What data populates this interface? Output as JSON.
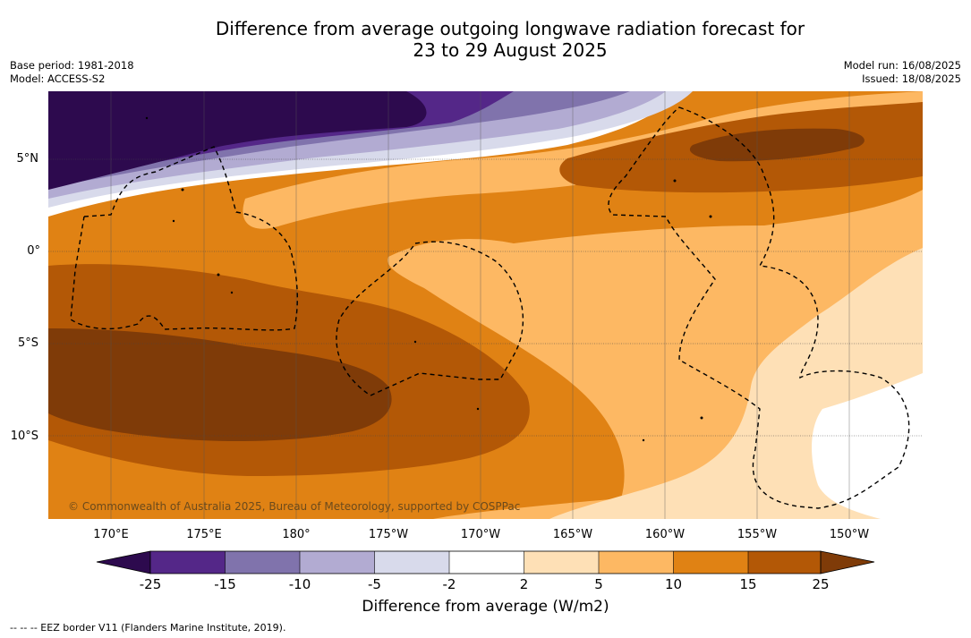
{
  "title_line1": "Difference from average outgoing longwave radiation forecast for",
  "title_line2": "23 to 29 August 2025",
  "base_period": "Base period: 1981-2018",
  "model": "Model: ACCESS-S2",
  "model_run": "Model run: 16/08/2025",
  "issued": "Issued: 18/08/2025",
  "lat_labels": [
    "5°N",
    "0°",
    "5°S",
    "10°S"
  ],
  "lon_labels": [
    "170°E",
    "175°E",
    "180°",
    "175°W",
    "170°W",
    "165°W",
    "160°W",
    "155°W",
    "150°W"
  ],
  "copyright": "© Commonwealth of Australia 2025, Bureau of Meteorology, supported by COSPPac",
  "colorbar": {
    "ticks": [
      "-25",
      "-15",
      "-10",
      "-5",
      "-2",
      "2",
      "5",
      "10",
      "15",
      "25"
    ],
    "colors": [
      "#2d0a4e",
      "#542788",
      "#8073ac",
      "#b2abd2",
      "#d8daeb",
      "#ffffff",
      "#fee0b6",
      "#fdb863",
      "#e08214",
      "#b35806",
      "#7f3b08"
    ],
    "title": "Difference from average (W/m2)"
  },
  "footnote": "--  --  -- EEZ border V11 (Flanders Marine Institute, 2019)."
}
